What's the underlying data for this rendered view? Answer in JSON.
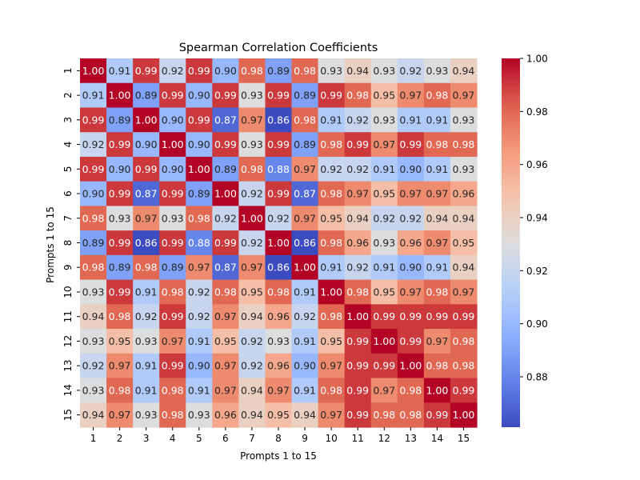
{
  "chart_data": {
    "type": "heatmap",
    "title": "Spearman Correlation Coefficients",
    "xlabel": "Prompts 1 to 15",
    "ylabel": "Prompts 1 to 15",
    "x_categories": [
      "1",
      "2",
      "3",
      "4",
      "5",
      "6",
      "7",
      "8",
      "9",
      "10",
      "11",
      "12",
      "13",
      "14",
      "15"
    ],
    "y_categories": [
      "1",
      "2",
      "3",
      "4",
      "5",
      "6",
      "7",
      "8",
      "9",
      "10",
      "11",
      "12",
      "13",
      "14",
      "15"
    ],
    "values": [
      [
        1.0,
        0.91,
        0.99,
        0.92,
        0.99,
        0.9,
        0.98,
        0.89,
        0.98,
        0.93,
        0.94,
        0.93,
        0.92,
        0.93,
        0.94
      ],
      [
        0.91,
        1.0,
        0.89,
        0.99,
        0.9,
        0.99,
        0.93,
        0.99,
        0.89,
        0.99,
        0.98,
        0.95,
        0.97,
        0.98,
        0.97
      ],
      [
        0.99,
        0.89,
        1.0,
        0.9,
        0.99,
        0.87,
        0.97,
        0.86,
        0.98,
        0.91,
        0.92,
        0.93,
        0.91,
        0.91,
        0.93
      ],
      [
        0.92,
        0.99,
        0.9,
        1.0,
        0.9,
        0.99,
        0.93,
        0.99,
        0.89,
        0.98,
        0.99,
        0.97,
        0.99,
        0.98,
        0.98
      ],
      [
        0.99,
        0.9,
        0.99,
        0.9,
        1.0,
        0.89,
        0.98,
        0.88,
        0.97,
        0.92,
        0.92,
        0.91,
        0.9,
        0.91,
        0.93
      ],
      [
        0.9,
        0.99,
        0.87,
        0.99,
        0.89,
        1.0,
        0.92,
        0.99,
        0.87,
        0.98,
        0.97,
        0.95,
        0.97,
        0.97,
        0.96
      ],
      [
        0.98,
        0.93,
        0.97,
        0.93,
        0.98,
        0.92,
        1.0,
        0.92,
        0.97,
        0.95,
        0.94,
        0.92,
        0.92,
        0.94,
        0.94
      ],
      [
        0.89,
        0.99,
        0.86,
        0.99,
        0.88,
        0.99,
        0.92,
        1.0,
        0.86,
        0.98,
        0.96,
        0.93,
        0.96,
        0.97,
        0.95
      ],
      [
        0.98,
        0.89,
        0.98,
        0.89,
        0.97,
        0.87,
        0.97,
        0.86,
        1.0,
        0.91,
        0.92,
        0.91,
        0.9,
        0.91,
        0.94
      ],
      [
        0.93,
        0.99,
        0.91,
        0.98,
        0.92,
        0.98,
        0.95,
        0.98,
        0.91,
        1.0,
        0.98,
        0.95,
        0.97,
        0.98,
        0.97
      ],
      [
        0.94,
        0.98,
        0.92,
        0.99,
        0.92,
        0.97,
        0.94,
        0.96,
        0.92,
        0.98,
        1.0,
        0.99,
        0.99,
        0.99,
        0.99
      ],
      [
        0.93,
        0.95,
        0.93,
        0.97,
        0.91,
        0.95,
        0.92,
        0.93,
        0.91,
        0.95,
        0.99,
        1.0,
        0.99,
        0.97,
        0.98
      ],
      [
        0.92,
        0.97,
        0.91,
        0.99,
        0.9,
        0.97,
        0.92,
        0.96,
        0.9,
        0.97,
        0.99,
        0.99,
        1.0,
        0.98,
        0.98
      ],
      [
        0.93,
        0.98,
        0.91,
        0.98,
        0.91,
        0.97,
        0.94,
        0.97,
        0.91,
        0.98,
        0.99,
        0.97,
        0.98,
        1.0,
        0.99
      ],
      [
        0.94,
        0.97,
        0.93,
        0.98,
        0.93,
        0.96,
        0.94,
        0.95,
        0.94,
        0.97,
        0.99,
        0.98,
        0.98,
        0.99,
        1.0
      ]
    ],
    "colormap": "coolwarm",
    "colorbar": {
      "range": [
        0.861,
        1.0
      ],
      "ticks": [
        0.88,
        0.9,
        0.92,
        0.94,
        0.96,
        0.98,
        1.0
      ],
      "tick_labels": [
        "0.88",
        "0.90",
        "0.92",
        "0.94",
        "0.96",
        "0.98",
        "1.00"
      ]
    },
    "grid": false
  }
}
